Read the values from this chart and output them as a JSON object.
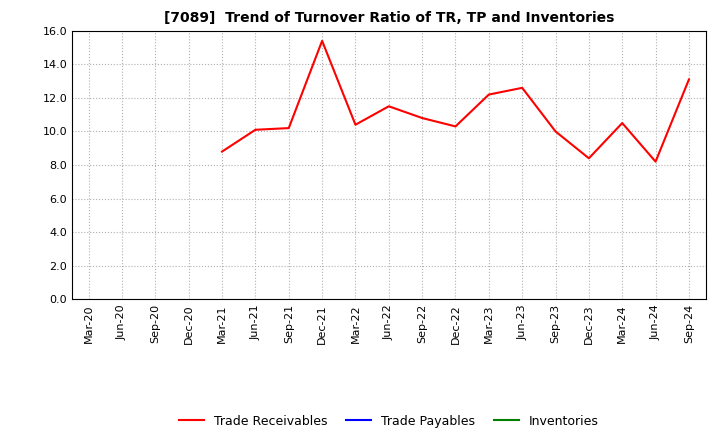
{
  "title": "[7089]  Trend of Turnover Ratio of TR, TP and Inventories",
  "xlabels": [
    "Mar-20",
    "Jun-20",
    "Sep-20",
    "Dec-20",
    "Mar-21",
    "Jun-21",
    "Sep-21",
    "Dec-21",
    "Mar-22",
    "Jun-22",
    "Sep-22",
    "Dec-22",
    "Mar-23",
    "Jun-23",
    "Sep-23",
    "Dec-23",
    "Mar-24",
    "Jun-24",
    "Sep-24"
  ],
  "trade_receivables": [
    null,
    null,
    null,
    null,
    8.8,
    10.1,
    10.2,
    15.4,
    10.4,
    11.5,
    10.8,
    10.3,
    12.2,
    12.6,
    10.0,
    8.4,
    10.5,
    8.2,
    13.1
  ],
  "trade_payables": [
    null,
    null,
    null,
    null,
    null,
    null,
    null,
    null,
    null,
    null,
    null,
    null,
    null,
    null,
    null,
    null,
    null,
    null,
    null
  ],
  "inventories": [
    null,
    null,
    null,
    null,
    null,
    null,
    null,
    null,
    null,
    null,
    null,
    null,
    null,
    null,
    null,
    null,
    null,
    null,
    null
  ],
  "ylim": [
    0.0,
    16.0
  ],
  "yticks": [
    0.0,
    2.0,
    4.0,
    6.0,
    8.0,
    10.0,
    12.0,
    14.0,
    16.0
  ],
  "tr_color": "#ff0000",
  "tp_color": "#0000ff",
  "inv_color": "#008000",
  "background_color": "#ffffff",
  "grid_color": "#b0b0b0",
  "title_fontsize": 10,
  "tick_fontsize": 8,
  "legend_fontsize": 9,
  "legend_labels": [
    "Trade Receivables",
    "Trade Payables",
    "Inventories"
  ]
}
